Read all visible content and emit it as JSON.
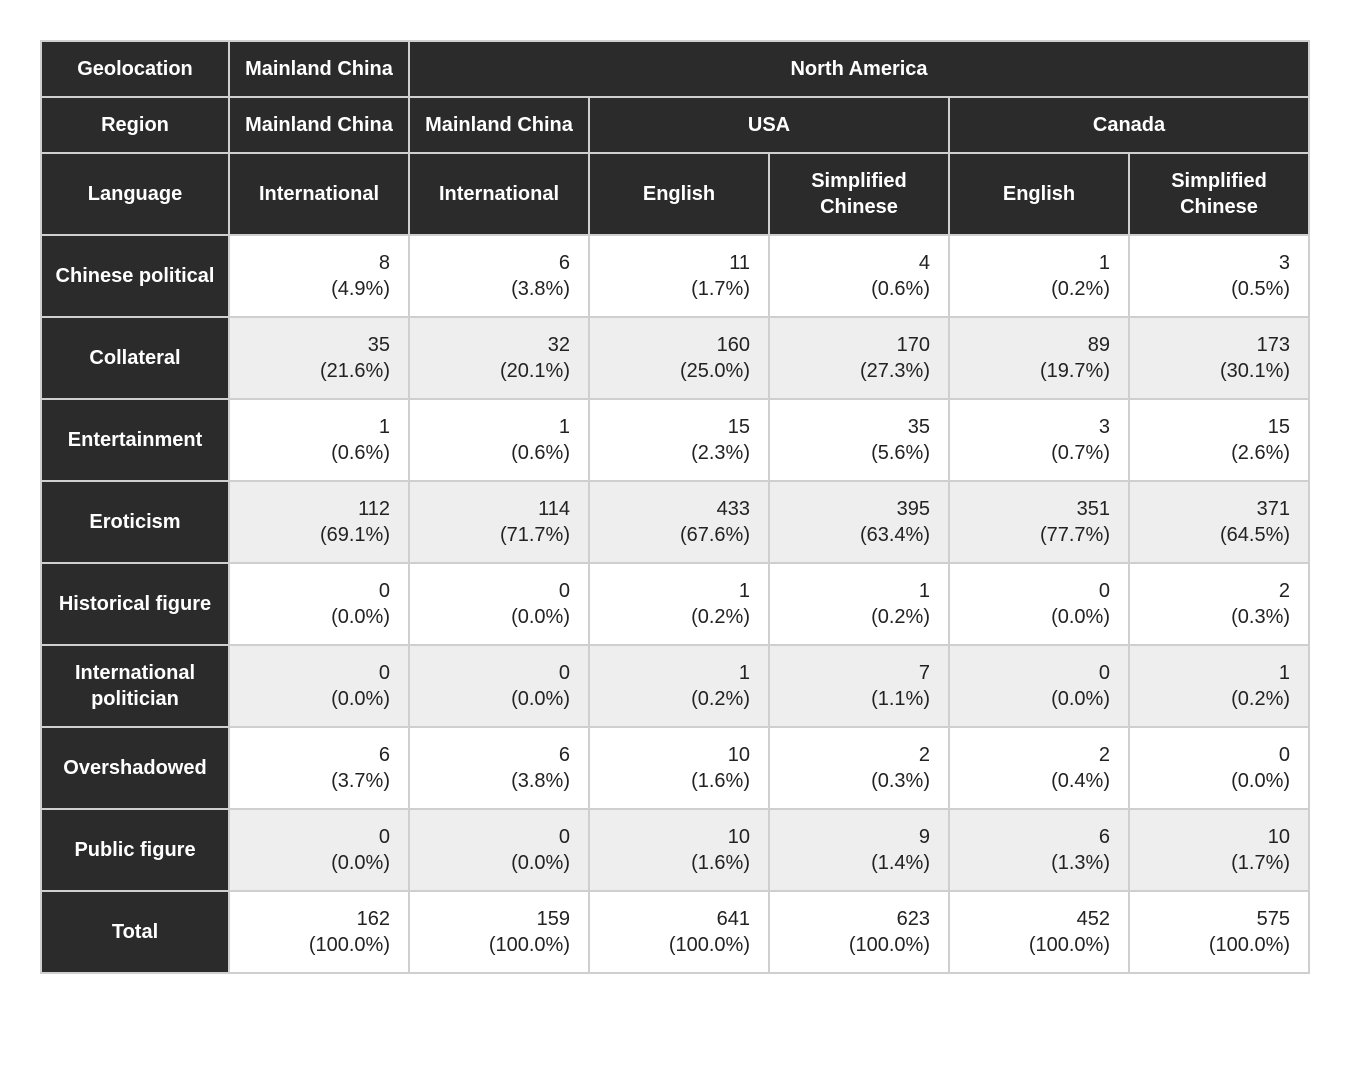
{
  "headers": {
    "geolocation_label": "Geolocation",
    "region_label": "Region",
    "language_label": "Language",
    "geo": {
      "mc": "Mainland China",
      "na": "North America"
    },
    "region": {
      "mc": "Mainland China",
      "usa": "USA",
      "canada": "Canada"
    },
    "language": {
      "intl": "International",
      "en": "English",
      "sc": "Simplified Chinese"
    }
  },
  "row_labels": {
    "chinese_political": "Chinese political",
    "collateral": "Collateral",
    "entertainment": "Entertainment",
    "eroticism": "Eroticism",
    "historical_figure": "Historical figure",
    "international_politician": "International politician",
    "overshadowed": "Overshadowed",
    "public_figure": "Public figure",
    "total": "Total"
  },
  "columns": [
    "mc_intl",
    "na_mc_intl",
    "na_usa_en",
    "na_usa_sc",
    "na_can_en",
    "na_can_sc"
  ],
  "cells": {
    "chinese_political": {
      "mc_intl": {
        "n": "8",
        "p": "(4.9%)"
      },
      "na_mc_intl": {
        "n": "6",
        "p": "(3.8%)"
      },
      "na_usa_en": {
        "n": "11",
        "p": "(1.7%)"
      },
      "na_usa_sc": {
        "n": "4",
        "p": "(0.6%)"
      },
      "na_can_en": {
        "n": "1",
        "p": "(0.2%)"
      },
      "na_can_sc": {
        "n": "3",
        "p": "(0.5%)"
      }
    },
    "collateral": {
      "mc_intl": {
        "n": "35",
        "p": "(21.6%)"
      },
      "na_mc_intl": {
        "n": "32",
        "p": "(20.1%)"
      },
      "na_usa_en": {
        "n": "160",
        "p": "(25.0%)"
      },
      "na_usa_sc": {
        "n": "170",
        "p": "(27.3%)"
      },
      "na_can_en": {
        "n": "89",
        "p": "(19.7%)"
      },
      "na_can_sc": {
        "n": "173",
        "p": "(30.1%)"
      }
    },
    "entertainment": {
      "mc_intl": {
        "n": "1",
        "p": "(0.6%)"
      },
      "na_mc_intl": {
        "n": "1",
        "p": "(0.6%)"
      },
      "na_usa_en": {
        "n": "15",
        "p": "(2.3%)"
      },
      "na_usa_sc": {
        "n": "35",
        "p": "(5.6%)"
      },
      "na_can_en": {
        "n": "3",
        "p": "(0.7%)"
      },
      "na_can_sc": {
        "n": "15",
        "p": "(2.6%)"
      }
    },
    "eroticism": {
      "mc_intl": {
        "n": "112",
        "p": "(69.1%)"
      },
      "na_mc_intl": {
        "n": "114",
        "p": "(71.7%)"
      },
      "na_usa_en": {
        "n": "433",
        "p": "(67.6%)"
      },
      "na_usa_sc": {
        "n": "395",
        "p": "(63.4%)"
      },
      "na_can_en": {
        "n": "351",
        "p": "(77.7%)"
      },
      "na_can_sc": {
        "n": "371",
        "p": "(64.5%)"
      }
    },
    "historical_figure": {
      "mc_intl": {
        "n": "0",
        "p": "(0.0%)"
      },
      "na_mc_intl": {
        "n": "0",
        "p": "(0.0%)"
      },
      "na_usa_en": {
        "n": "1",
        "p": "(0.2%)"
      },
      "na_usa_sc": {
        "n": "1",
        "p": "(0.2%)"
      },
      "na_can_en": {
        "n": "0",
        "p": "(0.0%)"
      },
      "na_can_sc": {
        "n": "2",
        "p": "(0.3%)"
      }
    },
    "international_politician": {
      "mc_intl": {
        "n": "0",
        "p": "(0.0%)"
      },
      "na_mc_intl": {
        "n": "0",
        "p": "(0.0%)"
      },
      "na_usa_en": {
        "n": "1",
        "p": "(0.2%)"
      },
      "na_usa_sc": {
        "n": "7",
        "p": "(1.1%)"
      },
      "na_can_en": {
        "n": "0",
        "p": "(0.0%)"
      },
      "na_can_sc": {
        "n": "1",
        "p": "(0.2%)"
      }
    },
    "overshadowed": {
      "mc_intl": {
        "n": "6",
        "p": "(3.7%)"
      },
      "na_mc_intl": {
        "n": "6",
        "p": "(3.8%)"
      },
      "na_usa_en": {
        "n": "10",
        "p": "(1.6%)"
      },
      "na_usa_sc": {
        "n": "2",
        "p": "(0.3%)"
      },
      "na_can_en": {
        "n": "2",
        "p": "(0.4%)"
      },
      "na_can_sc": {
        "n": "0",
        "p": "(0.0%)"
      }
    },
    "public_figure": {
      "mc_intl": {
        "n": "0",
        "p": "(0.0%)"
      },
      "na_mc_intl": {
        "n": "0",
        "p": "(0.0%)"
      },
      "na_usa_en": {
        "n": "10",
        "p": "(1.6%)"
      },
      "na_usa_sc": {
        "n": "9",
        "p": "(1.4%)"
      },
      "na_can_en": {
        "n": "6",
        "p": "(1.3%)"
      },
      "na_can_sc": {
        "n": "10",
        "p": "(1.7%)"
      }
    },
    "total": {
      "mc_intl": {
        "n": "162",
        "p": "(100.0%)"
      },
      "na_mc_intl": {
        "n": "159",
        "p": "(100.0%)"
      },
      "na_usa_en": {
        "n": "641",
        "p": "(100.0%)"
      },
      "na_usa_sc": {
        "n": "623",
        "p": "(100.0%)"
      },
      "na_can_en": {
        "n": "452",
        "p": "(100.0%)"
      },
      "na_can_sc": {
        "n": "575",
        "p": "(100.0%)"
      }
    }
  },
  "style": {
    "background_color": "#ffffff",
    "header_bg": "#2b2b2b",
    "header_fg": "#ffffff",
    "row_even_bg": "#ffffff",
    "row_odd_bg": "#eeeeee",
    "border_color": "#cfcfcf",
    "font_family": "Arial, Helvetica, sans-serif",
    "font_size_pt": 15
  }
}
